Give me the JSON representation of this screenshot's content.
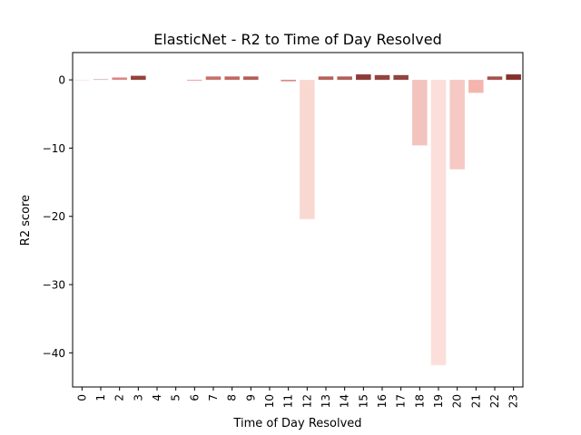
{
  "chart_data": {
    "type": "bar",
    "title": "ElasticNet - R2 to Time of Day Resolved",
    "xlabel": "Time of Day Resolved",
    "ylabel": "R2 score",
    "categories": [
      "0",
      "1",
      "2",
      "3",
      "4",
      "5",
      "6",
      "7",
      "8",
      "9",
      "10",
      "11",
      "12",
      "13",
      "14",
      "15",
      "16",
      "17",
      "18",
      "19",
      "20",
      "21",
      "22",
      "23"
    ],
    "values": [
      -0.1,
      0.1,
      0.35,
      0.6,
      0,
      0,
      -0.1,
      0.5,
      0.5,
      0.5,
      0,
      -0.2,
      -20.4,
      0.5,
      0.5,
      0.8,
      0.7,
      0.7,
      -9.6,
      -41.8,
      -13.1,
      -1.9,
      0.5,
      0.8
    ],
    "ylim": [
      -45,
      4
    ],
    "yticks": [
      0,
      -10,
      -20,
      -30,
      -40
    ],
    "ytick_labels": [
      "0",
      "−10",
      "−20",
      "−30",
      "−40"
    ],
    "grid": false,
    "legend": "none",
    "bar_colors": [
      "#fde0d9",
      "#c9a8b7",
      "#d98781",
      "#96413c",
      "#ffffff",
      "#ffffff",
      "#df8a84",
      "#c8706a",
      "#c26864",
      "#b45c56",
      "#ffffff",
      "#d57d78",
      "#fad8d2",
      "#b7625c",
      "#b2605a",
      "#8c3c38",
      "#96443e",
      "#924440",
      "#f3c3be",
      "#fcdfda",
      "#f6c9c4",
      "#f4b5ae",
      "#a5524d",
      "#85302c"
    ]
  }
}
